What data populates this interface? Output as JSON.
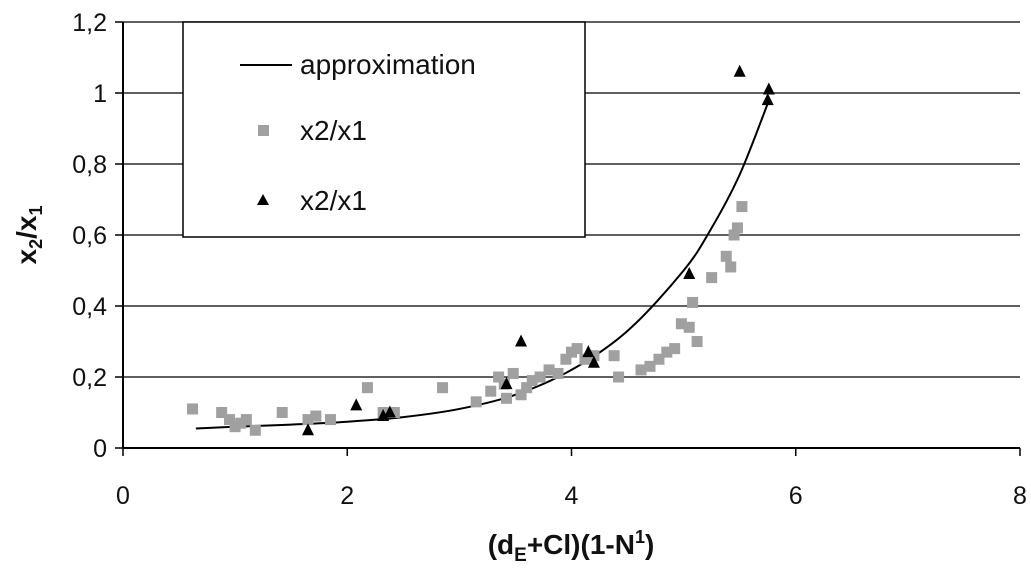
{
  "chart_data": {
    "type": "scatter",
    "xlabel": "(dE+Cl)(1-N1)",
    "xlabel_parts": {
      "open": "(d",
      "sub": "E",
      "middle": "+Cl)(1-N",
      "sup": "1",
      "close": ")"
    },
    "ylabel": "x2/x1",
    "ylabel_parts": {
      "a": "x",
      "sub_a": "2",
      "slash": "/",
      "b": "x",
      "sub_b": "1"
    },
    "xlim": [
      0,
      8
    ],
    "ylim": [
      0,
      1.2
    ],
    "x_ticks": [
      0,
      2,
      4,
      6,
      8
    ],
    "x_tick_labels": [
      "0",
      "2",
      "4",
      "6",
      "8"
    ],
    "y_ticks": [
      0,
      0.2,
      0.4,
      0.6,
      0.8,
      1.0,
      1.2
    ],
    "y_tick_labels": [
      "0",
      "0,2",
      "0,4",
      "0,6",
      "0,8",
      "1",
      "1,2"
    ],
    "grid": "horizontal",
    "legend_position": "top-left",
    "series": [
      {
        "name": "approximation",
        "kind": "line",
        "color": "#000000",
        "x": [
          0.65,
          1.0,
          1.5,
          2.0,
          2.5,
          3.0,
          3.5,
          4.0,
          4.5,
          5.0,
          5.25,
          5.5,
          5.75
        ],
        "y": [
          0.055,
          0.06,
          0.066,
          0.074,
          0.087,
          0.11,
          0.15,
          0.22,
          0.33,
          0.5,
          0.62,
          0.77,
          0.97
        ]
      },
      {
        "name": "x2/x1",
        "kind": "square",
        "color": "#a0a0a0",
        "x": [
          0.62,
          0.88,
          0.95,
          1.0,
          1.05,
          1.1,
          1.18,
          1.42,
          1.65,
          1.72,
          1.85,
          2.18,
          2.32,
          2.42,
          2.85,
          3.15,
          3.28,
          3.35,
          3.4,
          3.42,
          3.48,
          3.55,
          3.6,
          3.65,
          3.72,
          3.8,
          3.88,
          3.95,
          4.0,
          4.05,
          4.12,
          4.2,
          4.38,
          4.42,
          4.62,
          4.7,
          4.78,
          4.85,
          4.92,
          4.98,
          5.05,
          5.08,
          5.12,
          5.25,
          5.38,
          5.42,
          5.45,
          5.48,
          5.52
        ],
        "y": [
          0.11,
          0.1,
          0.08,
          0.06,
          0.07,
          0.08,
          0.05,
          0.1,
          0.08,
          0.09,
          0.08,
          0.17,
          0.1,
          0.1,
          0.17,
          0.13,
          0.16,
          0.2,
          0.18,
          0.14,
          0.21,
          0.15,
          0.17,
          0.19,
          0.2,
          0.22,
          0.21,
          0.25,
          0.27,
          0.28,
          0.25,
          0.26,
          0.26,
          0.2,
          0.22,
          0.23,
          0.25,
          0.27,
          0.28,
          0.35,
          0.34,
          0.41,
          0.3,
          0.48,
          0.54,
          0.51,
          0.6,
          0.62,
          0.68
        ]
      },
      {
        "name": "x2/x1",
        "kind": "triangle",
        "color": "#000000",
        "x": [
          1.65,
          2.08,
          2.32,
          2.38,
          3.42,
          3.55,
          4.15,
          4.2,
          5.05,
          5.5,
          5.75,
          5.76
        ],
        "y": [
          0.05,
          0.12,
          0.09,
          0.1,
          0.18,
          0.3,
          0.27,
          0.24,
          0.49,
          1.06,
          0.98,
          1.01
        ]
      }
    ]
  }
}
